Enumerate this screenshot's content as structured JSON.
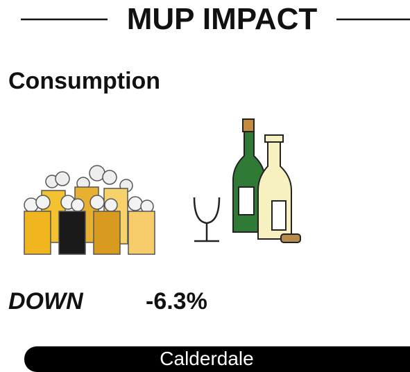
{
  "header": {
    "title": "MUP IMPACT"
  },
  "section": {
    "heading": "Consumption"
  },
  "result": {
    "direction": "DOWN",
    "change": "-6.3%"
  },
  "footer": {
    "area": "Calderdale"
  }
}
